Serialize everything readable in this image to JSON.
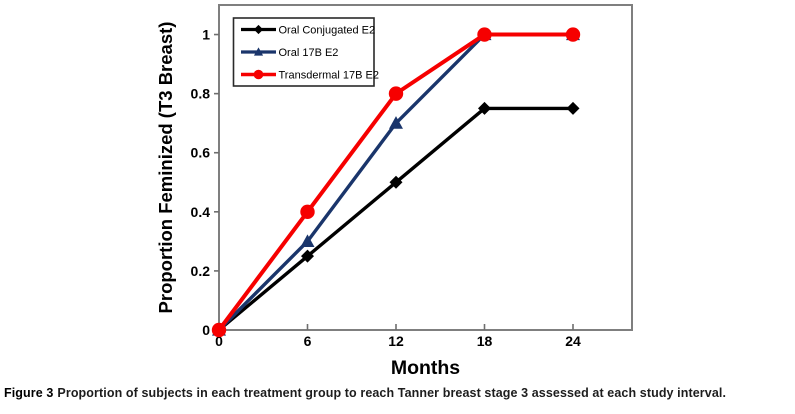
{
  "figure": {
    "caption_label": "Figure 3",
    "caption_text": "Proportion of subjects in each treatment group to reach Tanner breast stage 3 assessed at each study interval."
  },
  "chart_data": {
    "type": "line",
    "title": "",
    "xlabel": "Months",
    "ylabel": "Proportion Feminized (T3 Breast)",
    "x": [
      0,
      6,
      12,
      18,
      24
    ],
    "xticks": [
      0,
      6,
      12,
      18,
      24
    ],
    "yticks": [
      0,
      0.2,
      0.4,
      0.6,
      0.8,
      1
    ],
    "xlim": [
      0,
      28
    ],
    "ylim": [
      0,
      1.1
    ],
    "grid": false,
    "legend_position": "top-left-inside",
    "series": [
      {
        "name": "Oral Conjugated E2",
        "marker": "diamond",
        "color": "#000000",
        "values": [
          0,
          0.25,
          0.5,
          0.75,
          0.75
        ]
      },
      {
        "name": "Oral 17B E2",
        "marker": "triangle",
        "color": "#1a356b",
        "values": [
          0,
          0.3,
          0.7,
          1,
          1
        ]
      },
      {
        "name": "Transdermal 17B E2",
        "marker": "circle",
        "color": "#f60000",
        "values": [
          0,
          0.4,
          0.8,
          1,
          1
        ]
      }
    ],
    "colors": {
      "axis_frame": "#7f7f7f",
      "tick": "#6e6e6e",
      "tick_label": "#000000",
      "legend_border": "#2a2a2a",
      "legend_bg": "#ffffff"
    }
  }
}
